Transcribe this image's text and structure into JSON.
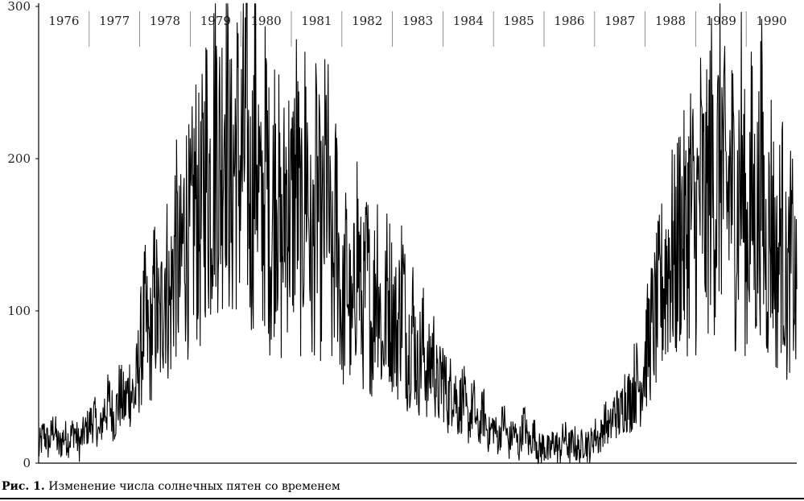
{
  "chart_data": {
    "type": "line",
    "y_ticks": [
      0,
      100,
      200,
      300
    ],
    "ylim": [
      0,
      300
    ],
    "xlim": [
      1976.0,
      1991.0
    ],
    "years": [
      "1976",
      "1977",
      "1978",
      "1979",
      "1980",
      "1981",
      "1982",
      "1983",
      "1984",
      "1985",
      "1986",
      "1987",
      "1988",
      "1989",
      "1990"
    ],
    "grid": false,
    "series": [
      {
        "values_note_free": true,
        "x": [
          1976.0,
          1976.1,
          1976.2,
          1976.3,
          1976.4,
          1976.5,
          1976.6,
          1976.7,
          1976.8,
          1976.9,
          1977.0,
          1977.1,
          1977.2,
          1977.3,
          1977.4,
          1977.5,
          1977.6,
          1977.7,
          1977.8,
          1977.9,
          1978.0,
          1978.1,
          1978.2,
          1978.3,
          1978.4,
          1978.5,
          1978.6,
          1978.7,
          1978.8,
          1978.9,
          1979.0,
          1979.1,
          1979.2,
          1979.3,
          1979.4,
          1979.5,
          1979.6,
          1979.7,
          1979.8,
          1979.9,
          1980.0,
          1980.1,
          1980.2,
          1980.3,
          1980.4,
          1980.5,
          1980.6,
          1980.7,
          1980.8,
          1980.9,
          1981.0,
          1981.1,
          1981.2,
          1981.3,
          1981.4,
          1981.5,
          1981.6,
          1981.7,
          1981.8,
          1981.9,
          1982.0,
          1982.1,
          1982.2,
          1982.3,
          1982.4,
          1982.5,
          1982.6,
          1982.7,
          1982.8,
          1982.9,
          1983.0,
          1983.1,
          1983.2,
          1983.3,
          1983.4,
          1983.5,
          1983.6,
          1983.7,
          1983.8,
          1983.9,
          1984.0,
          1984.1,
          1984.2,
          1984.3,
          1984.4,
          1984.5,
          1984.6,
          1984.7,
          1984.8,
          1984.9,
          1985.0,
          1985.1,
          1985.2,
          1985.3,
          1985.4,
          1985.5,
          1985.6,
          1985.7,
          1985.8,
          1985.9,
          1986.0,
          1986.1,
          1986.2,
          1986.3,
          1986.4,
          1986.5,
          1986.6,
          1986.7,
          1986.8,
          1986.9,
          1987.0,
          1987.1,
          1987.2,
          1987.3,
          1987.4,
          1987.5,
          1987.6,
          1987.7,
          1987.8,
          1987.9,
          1988.0,
          1988.1,
          1988.2,
          1988.3,
          1988.4,
          1988.5,
          1988.6,
          1988.7,
          1988.8,
          1988.9,
          1989.0,
          1989.1,
          1989.2,
          1989.3,
          1989.4,
          1989.5,
          1989.6,
          1989.7,
          1989.8,
          1989.9,
          1990.0,
          1990.1,
          1990.2,
          1990.3,
          1990.4,
          1990.5,
          1990.6,
          1990.7,
          1990.8,
          1990.9,
          1991.0
        ],
        "y": [
          8,
          20,
          12,
          25,
          10,
          18,
          15,
          22,
          12,
          20,
          25,
          30,
          18,
          35,
          40,
          28,
          45,
          38,
          50,
          42,
          70,
          95,
          75,
          110,
          85,
          130,
          100,
          145,
          120,
          160,
          140,
          175,
          150,
          200,
          180,
          230,
          190,
          260,
          170,
          210,
          190,
          220,
          160,
          230,
          150,
          200,
          140,
          210,
          130,
          185,
          160,
          195,
          140,
          210,
          120,
          180,
          135,
          200,
          110,
          165,
          90,
          130,
          80,
          150,
          95,
          125,
          85,
          140,
          70,
          115,
          100,
          85,
          120,
          70,
          95,
          60,
          80,
          55,
          75,
          45,
          60,
          40,
          55,
          35,
          45,
          25,
          40,
          20,
          35,
          18,
          25,
          15,
          30,
          12,
          22,
          10,
          28,
          12,
          20,
          8,
          12,
          6,
          15,
          8,
          18,
          10,
          14,
          7,
          16,
          9,
          20,
          15,
          28,
          22,
          35,
          30,
          45,
          40,
          55,
          50,
          70,
          85,
          95,
          110,
          125,
          140,
          130,
          160,
          145,
          175,
          150,
          185,
          160,
          200,
          170,
          215,
          165,
          190,
          155,
          205,
          140,
          180,
          150,
          195,
          130,
          170,
          120,
          160,
          110,
          140,
          100
        ]
      }
    ]
  },
  "caption": {
    "lead": "Рис. 1.",
    "text": "Изменение числа солнечных пятен со временем"
  }
}
